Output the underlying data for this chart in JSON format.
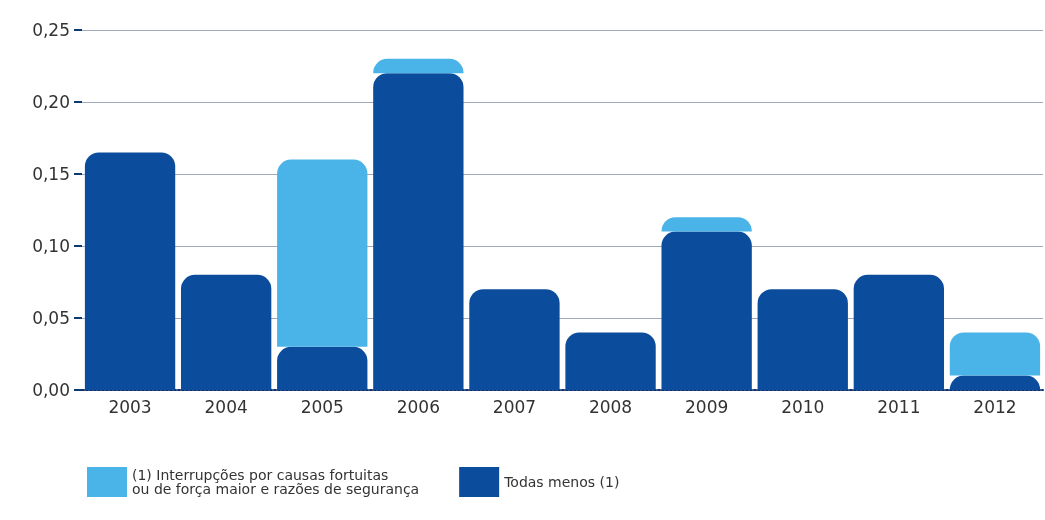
{
  "chart_data": {
    "type": "bar",
    "stacked": true,
    "categories": [
      "2003",
      "2004",
      "2005",
      "2006",
      "2007",
      "2008",
      "2009",
      "2010",
      "2011",
      "2012"
    ],
    "series": [
      {
        "name": "Todas menos (1)",
        "color": "#0b4d9c",
        "values": [
          0.165,
          0.08,
          0.03,
          0.22,
          0.07,
          0.04,
          0.11,
          0.07,
          0.08,
          0.01
        ]
      },
      {
        "name": "(1) Interrupções por causas fortuitas\nou de força maior e razões de segurança",
        "color": "#4ab4e8",
        "values": [
          0,
          0,
          0.13,
          0.01,
          0,
          0,
          0.01,
          0,
          0,
          0.03
        ]
      }
    ],
    "ylim": [
      0,
      0.25
    ],
    "yticks": [
      {
        "value": 0,
        "label": "0,00"
      },
      {
        "value": 0.05,
        "label": "0,05"
      },
      {
        "value": 0.1,
        "label": "0,10"
      },
      {
        "value": 0.15,
        "label": "0,15"
      },
      {
        "value": 0.2,
        "label": "0,20"
      },
      {
        "value": 0.25,
        "label": "0,25"
      }
    ],
    "grid": "y",
    "legend": "bottom left"
  }
}
